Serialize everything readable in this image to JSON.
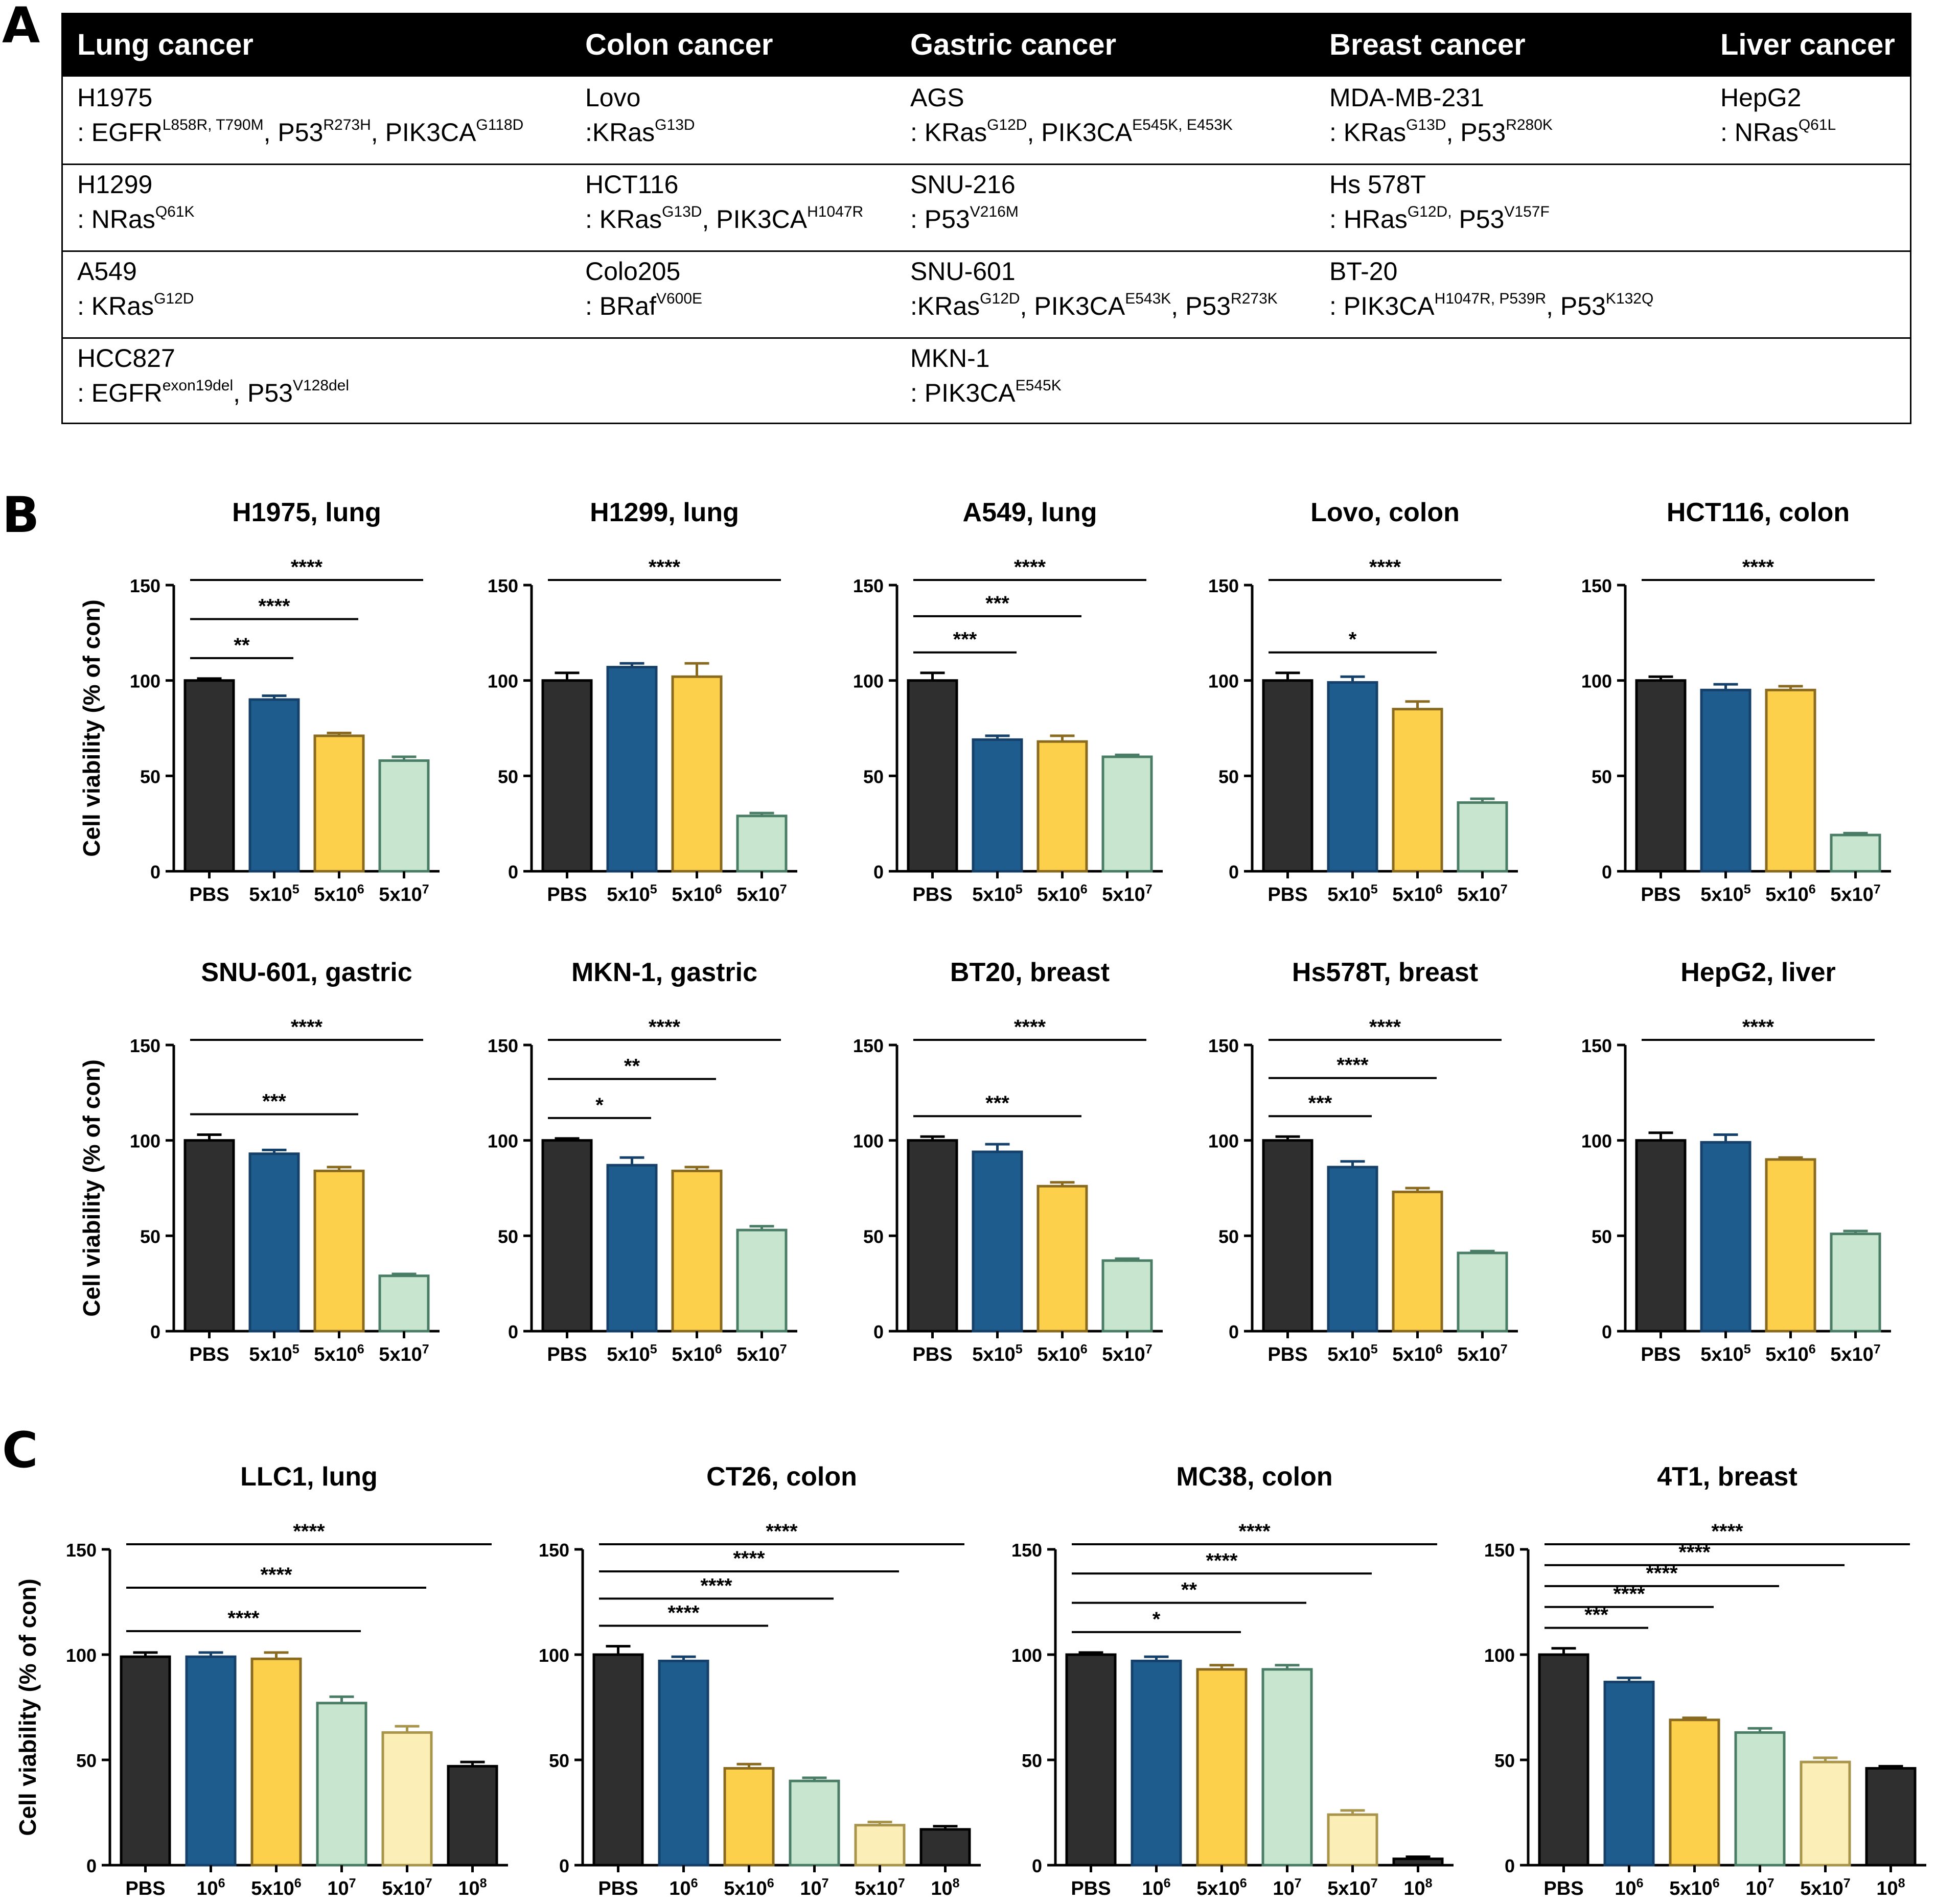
{
  "panel_letters": [
    "A",
    "B",
    "C"
  ],
  "table": {
    "headers": [
      "Lung cancer",
      "Colon cancer",
      "Gastric cancer",
      "Breast cancer",
      "Liver cancer"
    ],
    "rows": [
      [
        {
          "name": "H1975",
          "mut": [
            [
              "EGFR",
              "L858R, T790M"
            ],
            [
              "P53",
              "R273H"
            ],
            [
              "PIK3CA",
              "G118D"
            ]
          ],
          "prefix": ": "
        },
        {
          "name": "Lovo",
          "mut": [
            [
              "KRas",
              "G13D"
            ]
          ],
          "prefix": ":"
        },
        {
          "name": "AGS",
          "mut": [
            [
              "KRas",
              "G12D"
            ],
            [
              "PIK3CA",
              "E545K, E453K"
            ]
          ],
          "prefix": ": "
        },
        {
          "name": "MDA-MB-231",
          "mut": [
            [
              "KRas",
              "G13D"
            ],
            [
              "P53",
              "R280K"
            ]
          ],
          "prefix": ": "
        },
        {
          "name": "HepG2",
          "mut": [
            [
              "NRas",
              "Q61L"
            ]
          ],
          "prefix": ": "
        }
      ],
      [
        {
          "name": "H1299",
          "mut": [
            [
              "NRas",
              "Q61K"
            ]
          ],
          "prefix": ": "
        },
        {
          "name": "HCT116",
          "mut": [
            [
              "KRas",
              "G13D"
            ],
            [
              "PIK3CA",
              "H1047R"
            ]
          ],
          "prefix": ": "
        },
        {
          "name": "SNU-216",
          "mut": [
            [
              "P53",
              "V216M"
            ]
          ],
          "prefix": ": "
        },
        {
          "name": "Hs 578T",
          "mut": [
            [
              "HRas",
              "G12D,"
            ],
            [
              "P53",
              "V157F"
            ]
          ],
          "prefix": ": ",
          "sep": " "
        },
        null
      ],
      [
        {
          "name": "A549",
          "mut": [
            [
              "KRas",
              "G12D"
            ]
          ],
          "prefix": ": "
        },
        {
          "name": "Colo205",
          "mut": [
            [
              "BRaf",
              "V600E"
            ]
          ],
          "prefix": ": "
        },
        {
          "name": "SNU-601",
          "mut": [
            [
              "KRas",
              "G12D"
            ],
            [
              "PIK3CA",
              "E543K"
            ],
            [
              "P53",
              "R273K"
            ]
          ],
          "prefix": ":"
        },
        {
          "name": "BT-20",
          "mut": [
            [
              "PIK3CA",
              "H1047R, P539R"
            ],
            [
              "P53",
              "K132Q"
            ]
          ],
          "prefix": ": "
        },
        null
      ],
      [
        {
          "name": "HCC827",
          "mut": [
            [
              "EGFR",
              "exon19del"
            ],
            [
              "P53",
              "V128del"
            ]
          ],
          "prefix": ": "
        },
        null,
        {
          "name": "MKN-1",
          "mut": [
            [
              "PIK3CA",
              "E545K"
            ]
          ],
          "prefix": ": "
        },
        null,
        null
      ]
    ]
  },
  "chart_data": [
    {
      "type": "bar",
      "panel": "B",
      "title": "H1975, lung",
      "ylabel": "Cell viability (% of con)",
      "ylim": [
        0,
        150
      ],
      "yticks": [
        "0",
        "50",
        "100",
        "150"
      ],
      "categories": [
        "PBS",
        "5x10^5",
        "5x10^6",
        "5x10^7"
      ],
      "values": [
        100,
        90,
        71,
        58
      ],
      "errors": [
        1,
        2,
        1.5,
        2
      ],
      "colors": [
        "black",
        "blue",
        "yellow",
        "green"
      ],
      "significance": [
        {
          "from": 0,
          "to": 1,
          "label": "**"
        },
        {
          "from": 0,
          "to": 2,
          "label": "****"
        },
        {
          "from": 0,
          "to": 3,
          "label": "****"
        }
      ]
    },
    {
      "type": "bar",
      "panel": "B",
      "title": "H1299, lung",
      "ylabel": "",
      "ylim": [
        0,
        150
      ],
      "yticks": [
        "0",
        "50",
        "100",
        "150"
      ],
      "categories": [
        "PBS",
        "5x10^5",
        "5x10^6",
        "5x10^7"
      ],
      "values": [
        100,
        107,
        102,
        29
      ],
      "errors": [
        4,
        2,
        7,
        1.5
      ],
      "colors": [
        "black",
        "blue",
        "yellow",
        "green"
      ],
      "significance": [
        {
          "from": 0,
          "to": 3,
          "label": "****"
        }
      ]
    },
    {
      "type": "bar",
      "panel": "B",
      "title": "A549, lung",
      "ylabel": "",
      "ylim": [
        0,
        150
      ],
      "yticks": [
        "0",
        "50",
        "100",
        "150"
      ],
      "categories": [
        "PBS",
        "5x10^5",
        "5x10^6",
        "5x10^7"
      ],
      "values": [
        100,
        69,
        68,
        60
      ],
      "errors": [
        4,
        2,
        3,
        1
      ],
      "colors": [
        "black",
        "blue",
        "yellow",
        "green"
      ],
      "significance": [
        {
          "from": 0,
          "to": 1,
          "label": "***"
        },
        {
          "from": 0,
          "to": 2,
          "label": "***"
        },
        {
          "from": 0,
          "to": 3,
          "label": "****"
        }
      ]
    },
    {
      "type": "bar",
      "panel": "B",
      "title": "Lovo, colon",
      "ylabel": "",
      "ylim": [
        0,
        150
      ],
      "yticks": [
        "0",
        "50",
        "100",
        "150"
      ],
      "categories": [
        "PBS",
        "5x10^5",
        "5x10^6",
        "5x10^7"
      ],
      "values": [
        100,
        99,
        85,
        36
      ],
      "errors": [
        4,
        3,
        4,
        2
      ],
      "colors": [
        "black",
        "blue",
        "yellow",
        "green"
      ],
      "significance": [
        {
          "from": 0,
          "to": 2,
          "label": "*"
        },
        {
          "from": 0,
          "to": 3,
          "label": "****"
        }
      ]
    },
    {
      "type": "bar",
      "panel": "B",
      "title": "HCT116, colon",
      "ylabel": "",
      "ylim": [
        0,
        150
      ],
      "yticks": [
        "0",
        "50",
        "100",
        "150"
      ],
      "categories": [
        "PBS",
        "5x10^5",
        "5x10^6",
        "5x10^7"
      ],
      "values": [
        100,
        95,
        95,
        19
      ],
      "errors": [
        2,
        3,
        2,
        1
      ],
      "colors": [
        "black",
        "blue",
        "yellow",
        "green"
      ],
      "significance": [
        {
          "from": 0,
          "to": 3,
          "label": "****"
        }
      ]
    },
    {
      "type": "bar",
      "panel": "B",
      "title": "SNU-601, gastric",
      "ylabel": "Cell viability (% of con)",
      "ylim": [
        0,
        150
      ],
      "yticks": [
        "0",
        "50",
        "100",
        "150"
      ],
      "categories": [
        "PBS",
        "5x10^5",
        "5x10^6",
        "5x10^7"
      ],
      "values": [
        100,
        93,
        84,
        29
      ],
      "errors": [
        3,
        2,
        2,
        1
      ],
      "colors": [
        "black",
        "blue",
        "yellow",
        "green"
      ],
      "significance": [
        {
          "from": 0,
          "to": 2,
          "label": "***"
        },
        {
          "from": 0,
          "to": 3,
          "label": "****"
        }
      ]
    },
    {
      "type": "bar",
      "panel": "B",
      "title": "MKN-1, gastric",
      "ylabel": "",
      "ylim": [
        0,
        150
      ],
      "yticks": [
        "0",
        "50",
        "100",
        "150"
      ],
      "categories": [
        "PBS",
        "5x10^5",
        "5x10^6",
        "5x10^7"
      ],
      "values": [
        100,
        87,
        84,
        53
      ],
      "errors": [
        1,
        4,
        2,
        2
      ],
      "colors": [
        "black",
        "blue",
        "yellow",
        "green"
      ],
      "significance": [
        {
          "from": 0,
          "to": 1,
          "label": "*"
        },
        {
          "from": 0,
          "to": 2,
          "label": "**"
        },
        {
          "from": 0,
          "to": 3,
          "label": "****"
        }
      ]
    },
    {
      "type": "bar",
      "panel": "B",
      "title": "BT20, breast",
      "ylabel": "",
      "ylim": [
        0,
        150
      ],
      "yticks": [
        "0",
        "50",
        "100",
        "150"
      ],
      "categories": [
        "PBS",
        "5x10^5",
        "5x10^6",
        "5x10^7"
      ],
      "values": [
        100,
        94,
        76,
        37
      ],
      "errors": [
        2,
        4,
        2,
        1
      ],
      "colors": [
        "black",
        "blue",
        "yellow",
        "green"
      ],
      "significance": [
        {
          "from": 0,
          "to": 2,
          "label": "***"
        },
        {
          "from": 0,
          "to": 3,
          "label": "****"
        }
      ]
    },
    {
      "type": "bar",
      "panel": "B",
      "title": "Hs578T, breast",
      "ylabel": "",
      "ylim": [
        0,
        150
      ],
      "yticks": [
        "0",
        "50",
        "100",
        "150"
      ],
      "categories": [
        "PBS",
        "5x10^5",
        "5x10^6",
        "5x10^7"
      ],
      "values": [
        100,
        86,
        73,
        41
      ],
      "errors": [
        2,
        3,
        2,
        1
      ],
      "colors": [
        "black",
        "blue",
        "yellow",
        "green"
      ],
      "significance": [
        {
          "from": 0,
          "to": 1,
          "label": "***"
        },
        {
          "from": 0,
          "to": 2,
          "label": "****"
        },
        {
          "from": 0,
          "to": 3,
          "label": "****"
        }
      ]
    },
    {
      "type": "bar",
      "panel": "B",
      "title": "HepG2, liver",
      "ylabel": "",
      "ylim": [
        0,
        150
      ],
      "yticks": [
        "0",
        "50",
        "100",
        "150"
      ],
      "categories": [
        "PBS",
        "5x10^5",
        "5x10^6",
        "5x10^7"
      ],
      "values": [
        100,
        99,
        90,
        51
      ],
      "errors": [
        4,
        4,
        1,
        1.5
      ],
      "colors": [
        "black",
        "blue",
        "yellow",
        "green"
      ],
      "significance": [
        {
          "from": 0,
          "to": 3,
          "label": "****"
        }
      ]
    },
    {
      "type": "bar",
      "panel": "C",
      "title": "LLC1, lung",
      "ylabel": "Cell viability (% of con)",
      "ylim": [
        0,
        150
      ],
      "yticks": [
        "0",
        "50",
        "100",
        "150"
      ],
      "categories": [
        "PBS",
        "10^6",
        "5x10^6",
        "10^7",
        "5x10^7",
        "10^8"
      ],
      "values": [
        99,
        99,
        98,
        77,
        63,
        47
      ],
      "errors": [
        2,
        2,
        3,
        3,
        3,
        2
      ],
      "colors": [
        "black",
        "blue",
        "yellow",
        "green",
        "cream",
        "black"
      ],
      "significance": [
        {
          "from": 0,
          "to": 3,
          "label": "****"
        },
        {
          "from": 0,
          "to": 4,
          "label": "****"
        },
        {
          "from": 0,
          "to": 5,
          "label": "****"
        }
      ]
    },
    {
      "type": "bar",
      "panel": "C",
      "title": "CT26, colon",
      "ylabel": "",
      "ylim": [
        0,
        150
      ],
      "yticks": [
        "0",
        "50",
        "100",
        "150"
      ],
      "categories": [
        "PBS",
        "10^6",
        "5x10^6",
        "10^7",
        "5x10^7",
        "10^8"
      ],
      "values": [
        100,
        97,
        46,
        40,
        19,
        17
      ],
      "errors": [
        4,
        2,
        2,
        1.5,
        1.5,
        1.5
      ],
      "colors": [
        "black",
        "blue",
        "yellow",
        "green",
        "cream",
        "black"
      ],
      "significance": [
        {
          "from": 0,
          "to": 2,
          "label": "****"
        },
        {
          "from": 0,
          "to": 3,
          "label": "****"
        },
        {
          "from": 0,
          "to": 4,
          "label": "****"
        },
        {
          "from": 0,
          "to": 5,
          "label": "****"
        }
      ]
    },
    {
      "type": "bar",
      "panel": "C",
      "title": "MC38, colon",
      "ylabel": "",
      "ylim": [
        0,
        150
      ],
      "yticks": [
        "0",
        "50",
        "100",
        "150"
      ],
      "categories": [
        "PBS",
        "10^6",
        "5x10^6",
        "10^7",
        "5x10^7",
        "10^8"
      ],
      "values": [
        100,
        97,
        93,
        93,
        24,
        3
      ],
      "errors": [
        1,
        2,
        2,
        2,
        2,
        1
      ],
      "colors": [
        "black",
        "blue",
        "yellow",
        "green",
        "cream",
        "black"
      ],
      "significance": [
        {
          "from": 0,
          "to": 2,
          "label": "*"
        },
        {
          "from": 0,
          "to": 3,
          "label": "**"
        },
        {
          "from": 0,
          "to": 4,
          "label": "****"
        },
        {
          "from": 0,
          "to": 5,
          "label": "****"
        }
      ]
    },
    {
      "type": "bar",
      "panel": "C",
      "title": "4T1, breast",
      "ylabel": "",
      "ylim": [
        0,
        150
      ],
      "yticks": [
        "0",
        "50",
        "100",
        "150"
      ],
      "categories": [
        "PBS",
        "10^6",
        "5x10^6",
        "10^7",
        "5x10^7",
        "10^8"
      ],
      "values": [
        100,
        87,
        69,
        63,
        49,
        46
      ],
      "errors": [
        3,
        2,
        1,
        2,
        2,
        1
      ],
      "colors": [
        "black",
        "blue",
        "yellow",
        "green",
        "cream",
        "black"
      ],
      "significance": [
        {
          "from": 0,
          "to": 1,
          "label": "***"
        },
        {
          "from": 0,
          "to": 2,
          "label": "****"
        },
        {
          "from": 0,
          "to": 3,
          "label": "****"
        },
        {
          "from": 0,
          "to": 4,
          "label": "****"
        },
        {
          "from": 0,
          "to": 5,
          "label": "****"
        }
      ]
    }
  ],
  "palette": {
    "black": {
      "fill": "#2f2f2f",
      "stroke": "#000000"
    },
    "blue": {
      "fill": "#1f5c8e",
      "stroke": "#14406a"
    },
    "yellow": {
      "fill": "#fdd04c",
      "stroke": "#8a6a1f"
    },
    "green": {
      "fill": "#c8e6cf",
      "stroke": "#4a7d65"
    },
    "cream": {
      "fill": "#fbefb7",
      "stroke": "#a8944b"
    }
  }
}
